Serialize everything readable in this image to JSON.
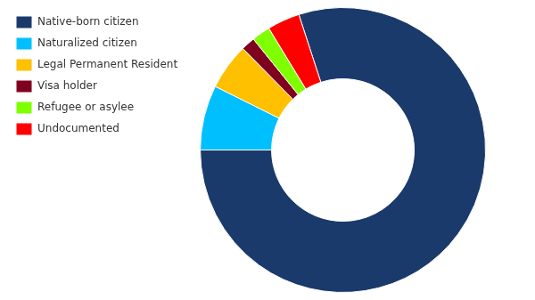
{
  "chart_data": {
    "type": "donut",
    "categories": [
      "Native-born citizen",
      "Naturalized citizen",
      "Legal Permanent Resident",
      "Visa holder",
      "Refugee or asylee",
      "Undocumented"
    ],
    "values": [
      76,
      7,
      5,
      1.5,
      2,
      3.5
    ],
    "colors": [
      "#1a3a6b",
      "#00bfff",
      "#ffc000",
      "#800020",
      "#7fff00",
      "#ff0000"
    ],
    "legend": "upper left"
  }
}
